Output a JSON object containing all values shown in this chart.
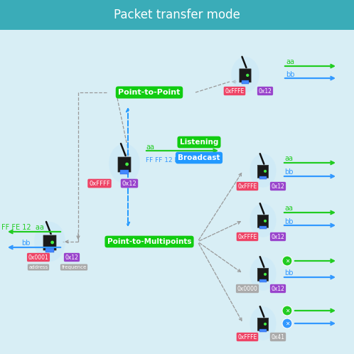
{
  "title": "Packet transfer mode",
  "title_bg": "#3aacb8",
  "bg_color": "#d8eef5",
  "point_to_point_label": "Point-to-Point",
  "point_to_multipoints_label": "Point-to-Multipoints",
  "listening_label": "Listening",
  "broadcast_label": "Broadcast",
  "green_color": "#22cc22",
  "blue_color": "#3399ff",
  "pink_color": "#ee4466",
  "purple_color": "#9944cc",
  "gray_color": "#aaaaaa",
  "teal_color": "#22aacc",
  "figsize": [
    4.98,
    4.98
  ],
  "dpi": 100
}
